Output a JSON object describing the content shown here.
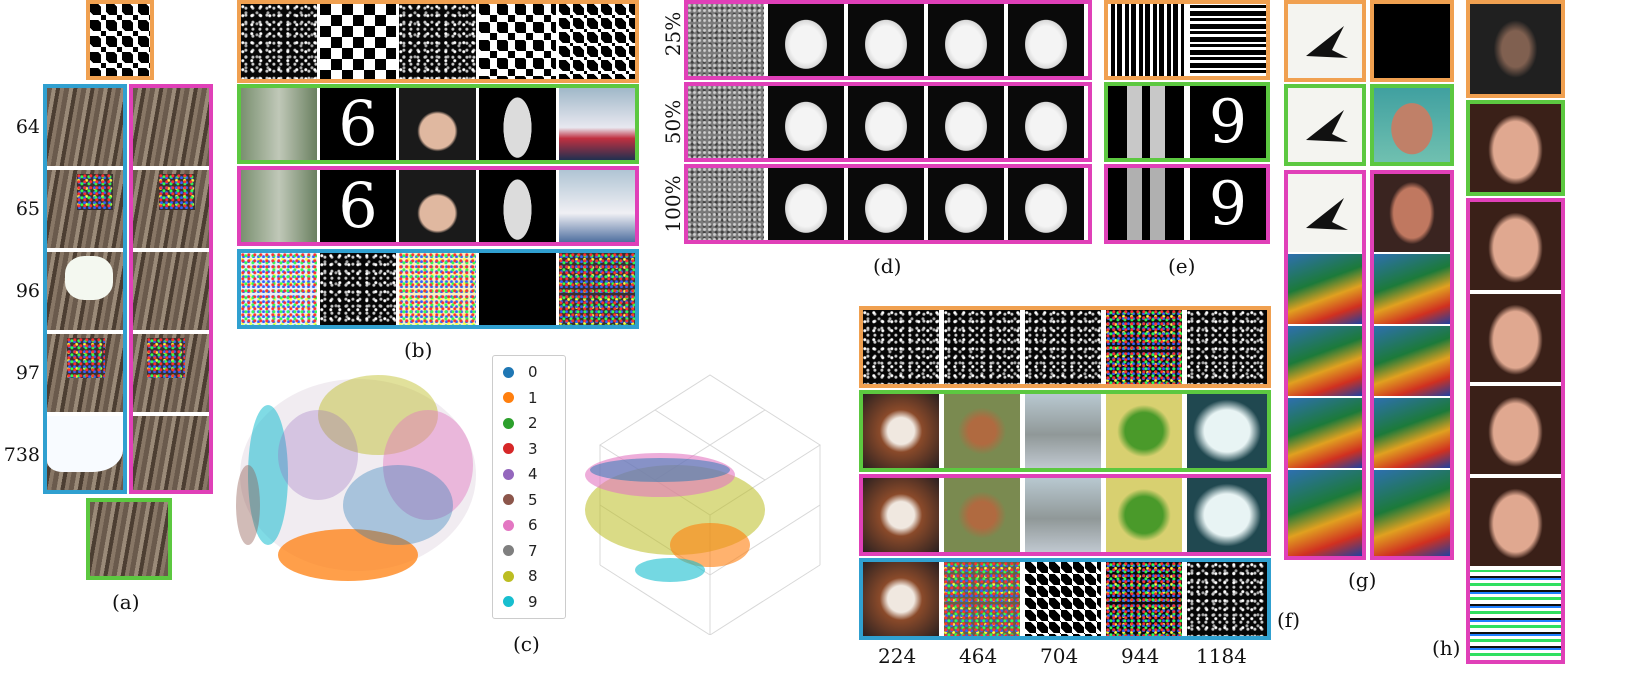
{
  "panels": {
    "a": {
      "caption": "(a)",
      "row_labels": [
        "64",
        "65",
        "96",
        "97",
        "738"
      ]
    },
    "b": {
      "caption": "(b)"
    },
    "c": {
      "caption": "(c)",
      "legend": [
        "0",
        "1",
        "2",
        "3",
        "4",
        "5",
        "6",
        "7",
        "8",
        "9"
      ],
      "legend_colors": [
        "#1f77b4",
        "#ff7f0e",
        "#2ca02c",
        "#d62728",
        "#9467bd",
        "#8c564b",
        "#e377c2",
        "#7f7f7f",
        "#bcbd22",
        "#17becf"
      ]
    },
    "d": {
      "caption": "(d)",
      "row_labels": [
        "25%",
        "50%",
        "100%"
      ]
    },
    "e": {
      "caption": "(e)"
    },
    "f": {
      "caption": "(f)",
      "column_labels": [
        "224",
        "464",
        "704",
        "944",
        "1184"
      ]
    },
    "g": {
      "caption": "(g)"
    },
    "h": {
      "caption": "(h)"
    }
  },
  "colors": {
    "orange": "#f0a050",
    "green": "#5cc840",
    "pink": "#e040b8",
    "blue": "#30a0d0"
  }
}
